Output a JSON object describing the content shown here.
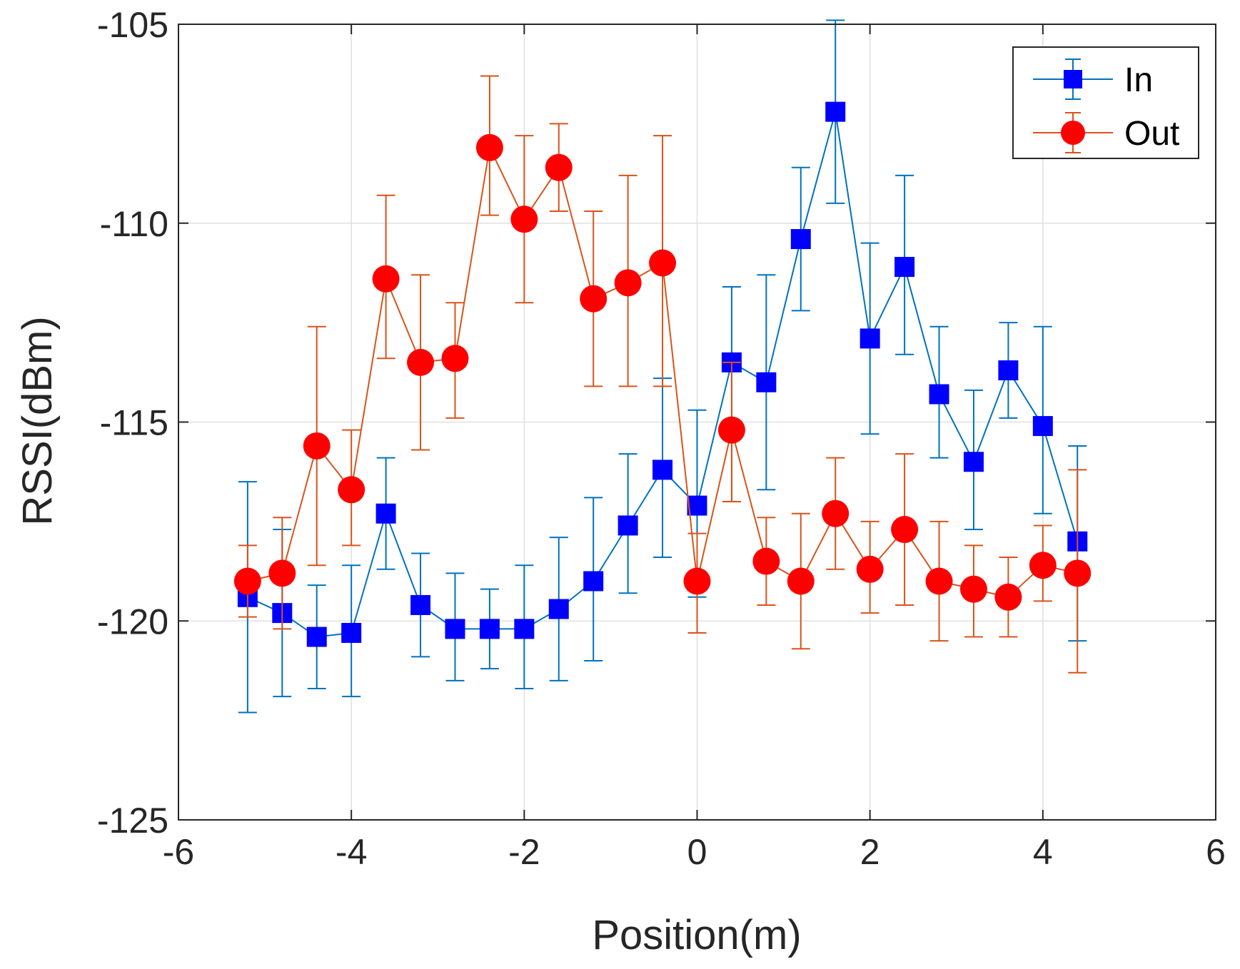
{
  "chart_data": {
    "type": "line",
    "title": "",
    "xlabel": "Position(m)",
    "ylabel": "RSSI(dBm)",
    "xlim": [
      -6,
      6
    ],
    "ylim": [
      -125,
      -105
    ],
    "xticks": [
      -6,
      -4,
      -2,
      0,
      2,
      4,
      6
    ],
    "yticks": [
      -105,
      -110,
      -115,
      -120,
      -125
    ],
    "xtick_labels": [
      "-6",
      "-4",
      "-2",
      "0",
      "2",
      "4",
      "6"
    ],
    "ytick_labels": [
      "-105",
      "-110",
      "-115",
      "-120",
      "-125"
    ],
    "grid": true,
    "legend_position": "top-right",
    "x": [
      -5.2,
      -4.8,
      -4.4,
      -4.0,
      -3.6,
      -3.2,
      -2.8,
      -2.4,
      -2.0,
      -1.6,
      -1.2,
      -0.8,
      -0.4,
      0.0,
      0.4,
      0.8,
      1.2,
      1.6,
      2.0,
      2.4,
      2.8,
      3.2,
      3.6,
      4.0,
      4.4
    ],
    "series": [
      {
        "name": "In",
        "color": "#0072BD",
        "marker_color": "#0000FF",
        "marker": "square",
        "values": [
          -119.4,
          -119.8,
          -120.4,
          -120.3,
          -117.3,
          -119.6,
          -120.2,
          -120.2,
          -120.2,
          -119.7,
          -119.0,
          -117.6,
          -116.2,
          -117.1,
          -113.5,
          -114.0,
          -110.4,
          -107.2,
          -112.9,
          -111.1,
          -114.3,
          -116.0,
          -113.7,
          -115.1,
          -118.0
        ],
        "err_low": [
          -122.3,
          -121.9,
          -121.7,
          -121.9,
          -118.7,
          -120.9,
          -121.5,
          -121.2,
          -121.7,
          -121.5,
          -121.0,
          -119.3,
          -118.4,
          -119.4,
          -117.0,
          -116.7,
          -112.2,
          -109.5,
          -115.3,
          -113.3,
          -115.9,
          -117.7,
          -114.9,
          -117.3,
          -120.5
        ],
        "err_high": [
          -116.5,
          -117.7,
          -119.1,
          -118.6,
          -115.9,
          -118.3,
          -118.8,
          -119.2,
          -118.6,
          -117.9,
          -116.9,
          -115.8,
          -113.9,
          -114.7,
          -111.6,
          -111.3,
          -108.6,
          -104.9,
          -110.5,
          -108.8,
          -112.6,
          -114.2,
          -112.5,
          -112.6,
          -115.6
        ]
      },
      {
        "name": "Out",
        "color": "#D95319",
        "marker_color": "#FF0000",
        "marker": "circle",
        "values": [
          -119.0,
          -118.8,
          -115.6,
          -116.7,
          -111.4,
          -113.5,
          -113.4,
          -108.1,
          -109.9,
          -108.6,
          -111.9,
          -111.5,
          -111.0,
          -119.0,
          -115.2,
          -118.5,
          -119.0,
          -117.3,
          -118.7,
          -117.7,
          -119.0,
          -119.2,
          -119.4,
          -118.6,
          -118.8
        ],
        "err_low": [
          -119.9,
          -120.2,
          -118.6,
          -118.1,
          -113.4,
          -115.7,
          -114.9,
          -109.8,
          -112.0,
          -109.7,
          -114.1,
          -114.1,
          -114.1,
          -120.3,
          -117.0,
          -119.6,
          -120.7,
          -118.7,
          -119.8,
          -119.6,
          -120.5,
          -120.4,
          -120.4,
          -119.5,
          -121.3
        ],
        "err_high": [
          -118.1,
          -117.4,
          -112.6,
          -115.2,
          -109.3,
          -111.3,
          -112.0,
          -106.3,
          -107.8,
          -107.5,
          -109.7,
          -108.8,
          -107.8,
          -117.8,
          -113.5,
          -117.4,
          -117.3,
          -115.9,
          -117.5,
          -115.8,
          -117.5,
          -118.1,
          -118.4,
          -117.6,
          -116.2
        ]
      }
    ]
  }
}
